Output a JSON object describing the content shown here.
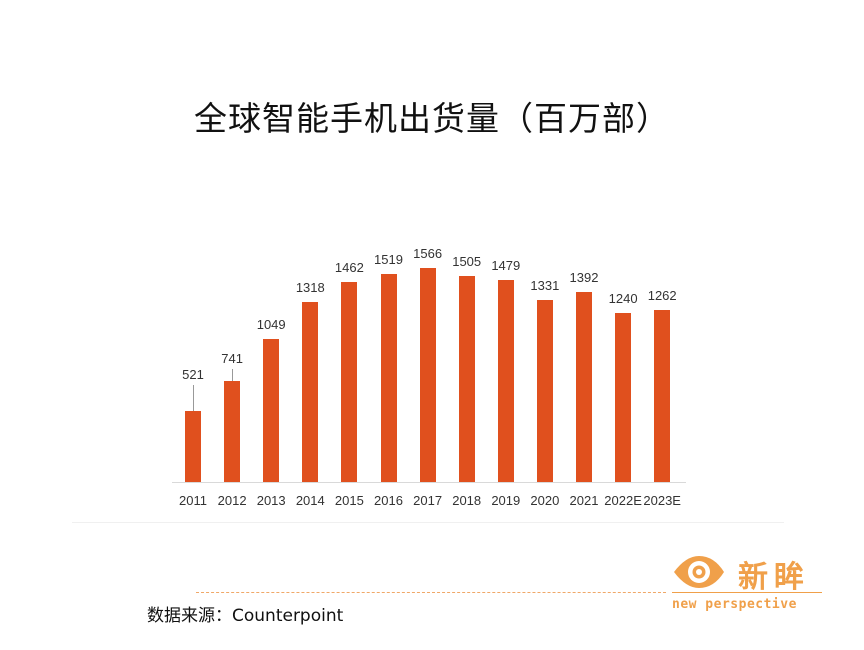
{
  "title": "全球智能手机出货量（百万部）",
  "source": "数据来源：Counterpoint",
  "logo": {
    "cn": "新眸",
    "en": "new perspective",
    "icon": "eye-icon",
    "color": "#f0a04a"
  },
  "colors": {
    "bar": "#e0501e",
    "accent": "#f0a04a"
  },
  "chart_data": {
    "type": "bar",
    "title": "全球智能手机出货量（百万部）",
    "xlabel": "",
    "ylabel": "百万部",
    "categories": [
      "2011",
      "2012",
      "2013",
      "2014",
      "2015",
      "2016",
      "2017",
      "2018",
      "2019",
      "2020",
      "2021",
      "2022E",
      "2023E"
    ],
    "values": [
      521,
      741,
      1049,
      1318,
      1462,
      1519,
      1566,
      1505,
      1479,
      1331,
      1392,
      1240,
      1262
    ],
    "value_labels": [
      "521",
      "741",
      "1049",
      "1318",
      "1462",
      "1519",
      "1566",
      "1505",
      "1479",
      "1331",
      "1392",
      "1240",
      "1262"
    ],
    "ylim": [
      0,
      1600
    ],
    "grid": false,
    "legend": "none",
    "data_labels": true
  }
}
